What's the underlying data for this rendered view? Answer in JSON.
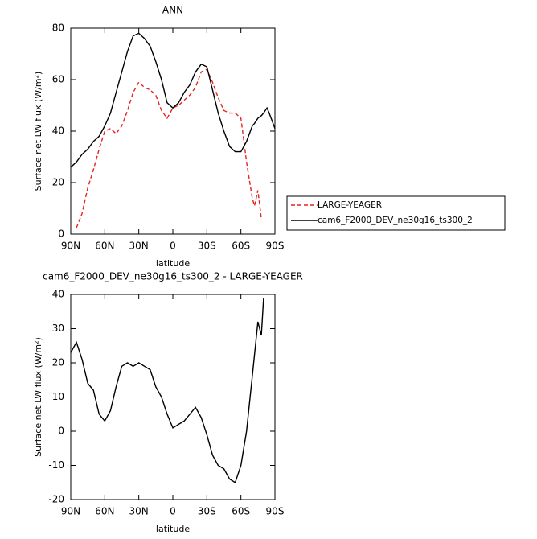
{
  "chart_data": [
    {
      "type": "line",
      "title": "ANN",
      "x_label": "latitude",
      "y_label": "Surface net LW flux (W/m²)",
      "x": [
        90,
        85,
        80,
        75,
        70,
        65,
        60,
        55,
        50,
        45,
        40,
        35,
        30,
        25,
        20,
        15,
        10,
        5,
        0,
        -5,
        -10,
        -15,
        -20,
        -25,
        -30,
        -35,
        -40,
        -45,
        -50,
        -55,
        -60,
        -65,
        -70,
        -72,
        -75,
        -78,
        -80,
        -83,
        -85,
        -90
      ],
      "series": [
        {
          "name": "LARGE-YEAGER",
          "color": "#e8231f",
          "line_style": "dashed",
          "values": [
            null,
            2.5,
            8,
            18,
            25,
            33,
            40,
            41,
            39,
            42,
            48,
            55,
            59,
            57,
            56,
            54,
            48,
            45,
            49,
            50,
            52,
            54,
            57,
            63,
            64,
            59,
            53,
            48,
            47,
            47,
            45,
            28,
            14,
            11,
            17,
            6,
            null,
            null,
            null,
            null
          ]
        },
        {
          "name": "cam6_F2000_DEV_ne30g16_ts300_2",
          "color": "#000000",
          "line_style": "solid",
          "values": [
            26,
            28,
            31,
            33,
            36,
            38,
            42,
            47,
            55,
            63,
            71,
            77,
            78,
            76,
            73,
            67,
            60,
            51,
            49,
            51,
            55,
            58,
            63,
            66,
            65,
            56,
            47,
            40,
            34,
            32,
            32,
            36,
            42,
            43,
            45,
            46,
            47,
            49,
            47,
            41
          ]
        }
      ],
      "xlim": [
        90,
        -90
      ],
      "xticks": [
        {
          "value": 90,
          "label": "90N"
        },
        {
          "value": 60,
          "label": "60N"
        },
        {
          "value": 30,
          "label": "30N"
        },
        0,
        {
          "value": -30,
          "label": "30S"
        },
        {
          "value": -60,
          "label": "60S"
        },
        {
          "value": -90,
          "label": "90S"
        }
      ],
      "ylim": [
        0,
        80
      ],
      "yticks": [
        0,
        20,
        40,
        60,
        80
      ],
      "legend": "right"
    },
    {
      "type": "line",
      "title": "cam6_F2000_DEV_ne30g16_ts300_2 - LARGE-YEAGER",
      "x_label": "latitude",
      "y_label": "Surface net LW flux (W/m²)",
      "x": [
        90,
        85,
        80,
        75,
        70,
        65,
        60,
        55,
        50,
        45,
        40,
        35,
        30,
        25,
        20,
        15,
        10,
        5,
        0,
        -5,
        -10,
        -15,
        -20,
        -25,
        -30,
        -35,
        -40,
        -45,
        -50,
        -55,
        -60,
        -65,
        -70,
        -75,
        -78,
        -80
      ],
      "series": [
        {
          "color": "#000000",
          "line_style": "solid",
          "values": [
            23,
            26,
            21,
            14,
            12,
            5,
            3,
            6,
            13,
            19,
            20,
            19,
            20,
            19,
            18,
            13,
            10,
            5,
            1,
            2,
            3,
            5,
            7,
            4,
            -1,
            -7,
            -10,
            -11,
            -14,
            -15,
            -10,
            0,
            16,
            32,
            28,
            39
          ]
        }
      ],
      "xlim": [
        90,
        -90
      ],
      "xticks": [
        {
          "value": 90,
          "label": "90N"
        },
        {
          "value": 60,
          "label": "60N"
        },
        {
          "value": 30,
          "label": "30N"
        },
        0,
        {
          "value": -30,
          "label": "30S"
        },
        {
          "value": -60,
          "label": "60S"
        },
        {
          "value": -90,
          "label": "90S"
        }
      ],
      "ylim": [
        -20,
        40
      ],
      "yticks": [
        -20,
        -10,
        0,
        10,
        20,
        30,
        40
      ]
    }
  ]
}
